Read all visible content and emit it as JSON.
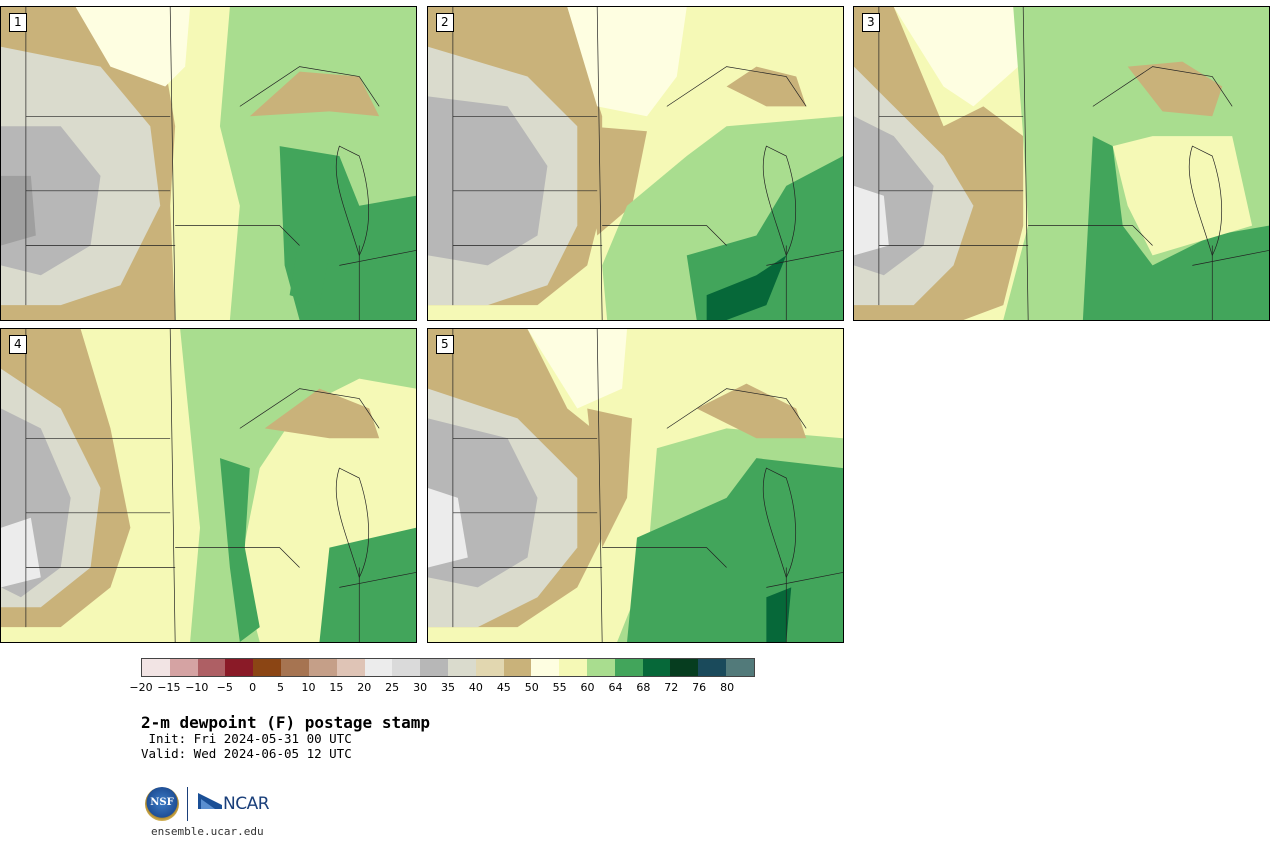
{
  "panels": [
    {
      "label": "1"
    },
    {
      "label": "2"
    },
    {
      "label": "3"
    },
    {
      "label": "4"
    },
    {
      "label": "5"
    }
  ],
  "colorbar": {
    "colors": [
      "#f2e4e4",
      "#d5a3a3",
      "#ae5f64",
      "#8a1a27",
      "#8b4514",
      "#a67451",
      "#c59f88",
      "#dfc4b6",
      "#ececec",
      "#dadada",
      "#b7b7b7",
      "#dadbcd",
      "#e2d7b0",
      "#c9b27a",
      "#fefee1",
      "#f5f9b6",
      "#a9dd8f",
      "#42a55b",
      "#066839",
      "#063d1f",
      "#1a4a5b",
      "#527a7a"
    ],
    "ticks": [
      "−20",
      "−15",
      "−10",
      "−5",
      "0",
      "5",
      "10",
      "15",
      "20",
      "25",
      "30",
      "35",
      "40",
      "45",
      "50",
      "55",
      "60",
      "64",
      "68",
      "72",
      "76",
      "80"
    ]
  },
  "title": "2-m dewpoint (F) postage stamp",
  "init": " Init: Fri 2024-05-31 00 UTC",
  "valid": "Valid: Wed 2024-06-05 12 UTC",
  "logos": {
    "nsf": "NSF",
    "ncar": "NCAR"
  },
  "site": "ensemble.ucar.edu"
}
